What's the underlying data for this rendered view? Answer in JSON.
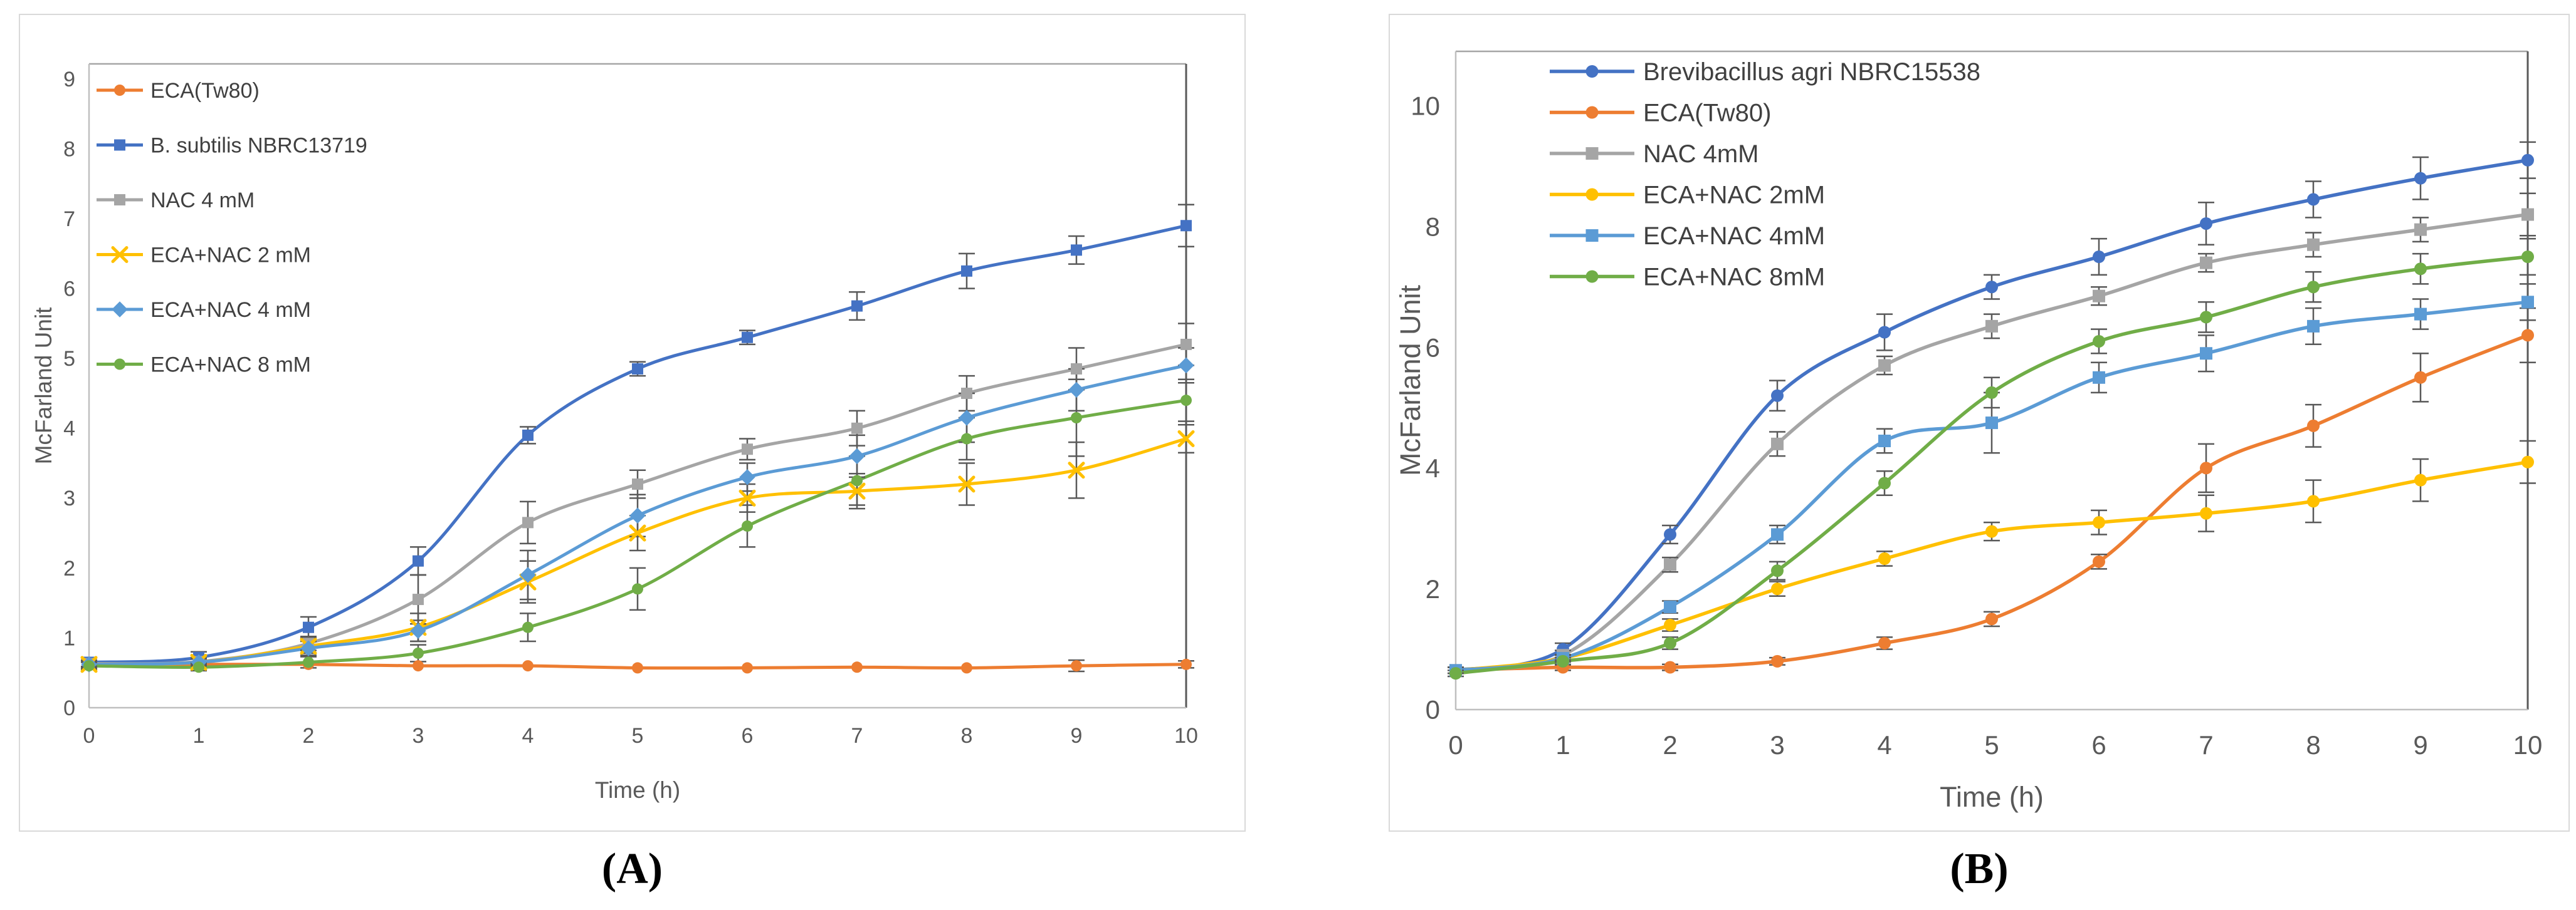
{
  "captions": {
    "a": "(A)",
    "b": "(B)"
  },
  "chart_data": [
    {
      "id": "A",
      "type": "line",
      "title": "",
      "xlabel": "Time (h)",
      "ylabel": "McFarland Unit",
      "x": [
        0,
        1,
        2,
        3,
        4,
        5,
        6,
        7,
        8,
        9,
        10
      ],
      "xlim": [
        0,
        10
      ],
      "ylim": [
        0,
        9
      ],
      "xticks": [
        0,
        1,
        2,
        3,
        4,
        5,
        6,
        7,
        8,
        9,
        10
      ],
      "yticks": [
        0,
        1,
        2,
        3,
        4,
        5,
        6,
        7,
        8,
        9
      ],
      "grid": false,
      "legend_position": "inside-top-left",
      "axis_color": "#bfbfbf",
      "border_color": "#595959",
      "text_color": "#595959",
      "error_color": "#595959",
      "series": [
        {
          "name": "ECA(Tw80)",
          "color": "#ED7D31",
          "marker": "circle",
          "values": [
            0.63,
            0.62,
            0.62,
            0.6,
            0.6,
            0.57,
            0.57,
            0.58,
            0.57,
            0.6,
            0.62
          ],
          "errors": [
            0.04,
            0.04,
            0.04,
            0.04,
            0.04,
            0.04,
            0.04,
            0.04,
            0.04,
            0.08,
            0.05
          ]
        },
        {
          "name": "B. subtilis NBRC13719",
          "color": "#4472C4",
          "marker": "square",
          "values": [
            0.65,
            0.72,
            1.15,
            2.1,
            3.9,
            4.85,
            5.3,
            5.75,
            6.25,
            6.55,
            6.9
          ],
          "errors": [
            0.06,
            0.08,
            0.15,
            0.2,
            0.12,
            0.1,
            0.1,
            0.2,
            0.25,
            0.2,
            0.3
          ]
        },
        {
          "name": "NAC 4 mM",
          "color": "#A5A5A5",
          "marker": "square",
          "values": [
            0.63,
            0.66,
            0.92,
            1.55,
            2.65,
            3.2,
            3.7,
            4.0,
            4.5,
            4.85,
            5.2
          ],
          "errors": [
            0.05,
            0.05,
            0.1,
            0.35,
            0.3,
            0.2,
            0.15,
            0.25,
            0.25,
            0.3,
            0.3
          ]
        },
        {
          "name": "ECA+NAC 2 mM",
          "color": "#FFC000",
          "marker": "x",
          "values": [
            0.62,
            0.65,
            0.88,
            1.15,
            1.8,
            2.5,
            3.0,
            3.1,
            3.2,
            3.4,
            3.85
          ],
          "errors": [
            0.05,
            0.05,
            0.1,
            0.2,
            0.3,
            0.25,
            0.2,
            0.25,
            0.3,
            0.4,
            0.2
          ]
        },
        {
          "name": "ECA+NAC 4 mM",
          "color": "#5B9BD5",
          "marker": "diamond",
          "values": [
            0.62,
            0.65,
            0.85,
            1.1,
            1.9,
            2.75,
            3.3,
            3.6,
            4.15,
            4.55,
            4.9
          ],
          "errors": [
            0.05,
            0.05,
            0.1,
            0.15,
            0.35,
            0.3,
            0.2,
            0.3,
            0.35,
            0.3,
            0.25
          ]
        },
        {
          "name": "ECA+NAC 8 mM",
          "color": "#70AD47",
          "marker": "circle",
          "values": [
            0.6,
            0.58,
            0.65,
            0.78,
            1.15,
            1.7,
            2.6,
            3.25,
            3.85,
            4.15,
            4.4
          ],
          "errors": [
            0.05,
            0.05,
            0.08,
            0.12,
            0.2,
            0.3,
            0.3,
            0.35,
            0.3,
            0.55,
            0.3
          ]
        }
      ]
    },
    {
      "id": "B",
      "type": "line",
      "title": "",
      "xlabel": "Time (h)",
      "ylabel": "McFarland Unit",
      "x": [
        0,
        1,
        2,
        3,
        4,
        5,
        6,
        7,
        8,
        9,
        10
      ],
      "xlim": [
        0,
        10
      ],
      "ylim": [
        0,
        10
      ],
      "xticks": [
        0,
        1,
        2,
        3,
        4,
        5,
        6,
        7,
        8,
        9,
        10
      ],
      "yticks": [
        0,
        2,
        4,
        6,
        8,
        10
      ],
      "grid": false,
      "legend_position": "inside-top-left",
      "axis_color": "#bfbfbf",
      "border_color": "#595959",
      "text_color": "#595959",
      "error_color": "#595959",
      "series": [
        {
          "name": "Brevibacillus agri NBRC15538",
          "color": "#4472C4",
          "marker": "circle",
          "values": [
            0.65,
            1.0,
            2.9,
            5.2,
            6.25,
            7.0,
            7.5,
            8.05,
            8.45,
            8.8,
            9.1
          ],
          "errors": [
            0.05,
            0.1,
            0.15,
            0.25,
            0.3,
            0.2,
            0.3,
            0.35,
            0.3,
            0.35,
            0.3
          ]
        },
        {
          "name": "ECA(Tw80)",
          "color": "#ED7D31",
          "marker": "circle",
          "values": [
            0.65,
            0.7,
            0.7,
            0.8,
            1.1,
            1.5,
            2.45,
            4.0,
            4.7,
            5.5,
            6.2
          ],
          "errors": [
            0.04,
            0.05,
            0.05,
            0.06,
            0.1,
            0.12,
            0.12,
            0.4,
            0.35,
            0.4,
            0.45
          ]
        },
        {
          "name": "NAC 4mM",
          "color": "#A5A5A5",
          "marker": "square",
          "values": [
            0.65,
            0.9,
            2.4,
            4.4,
            5.7,
            6.35,
            6.85,
            7.4,
            7.7,
            7.95,
            8.2
          ],
          "errors": [
            0.05,
            0.08,
            0.12,
            0.2,
            0.15,
            0.2,
            0.15,
            0.15,
            0.2,
            0.2,
            0.35
          ]
        },
        {
          "name": "ECA+NAC 2mM",
          "color": "#FFC000",
          "marker": "circle",
          "values": [
            0.65,
            0.85,
            1.4,
            2.0,
            2.5,
            2.95,
            3.1,
            3.25,
            3.45,
            3.8,
            4.1
          ],
          "errors": [
            0.05,
            0.06,
            0.1,
            0.12,
            0.12,
            0.15,
            0.2,
            0.3,
            0.35,
            0.35,
            0.35
          ]
        },
        {
          "name": "ECA+NAC 4mM",
          "color": "#5B9BD5",
          "marker": "square",
          "values": [
            0.65,
            0.85,
            1.7,
            2.9,
            4.45,
            4.75,
            5.5,
            5.9,
            6.35,
            6.55,
            6.75
          ],
          "errors": [
            0.05,
            0.06,
            0.1,
            0.15,
            0.2,
            0.5,
            0.25,
            0.3,
            0.3,
            0.25,
            0.3
          ]
        },
        {
          "name": "ECA+NAC 8mM",
          "color": "#70AD47",
          "marker": "circle",
          "values": [
            0.6,
            0.8,
            1.1,
            2.3,
            3.75,
            5.25,
            6.1,
            6.5,
            7.0,
            7.3,
            7.5
          ],
          "errors": [
            0.05,
            0.06,
            0.1,
            0.15,
            0.2,
            0.25,
            0.2,
            0.25,
            0.25,
            0.25,
            0.3
          ]
        }
      ]
    }
  ]
}
